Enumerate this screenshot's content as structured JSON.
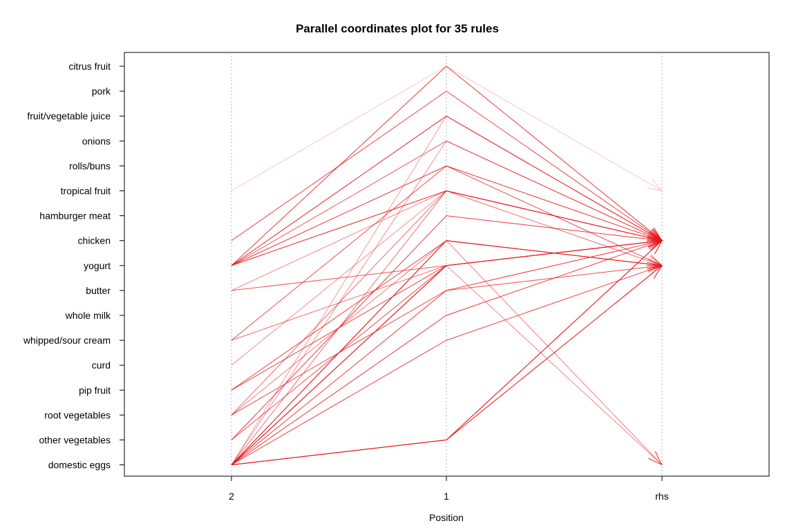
{
  "chart_data": {
    "type": "parallel-coordinates",
    "title": "Parallel coordinates plot for 35 rules",
    "xlabel": "Position",
    "axes": [
      "2",
      "1",
      "rhs"
    ],
    "items": [
      "citrus fruit",
      "pork",
      "fruit/vegetable juice",
      "onions",
      "rolls/buns",
      "tropical fruit",
      "hamburger meat",
      "chicken",
      "yogurt",
      "butter",
      "whole milk",
      "whipped/sour cream",
      "curd",
      "pip fruit",
      "root vegetables",
      "other vegetables",
      "domestic eggs"
    ],
    "line_color": "#e8191e",
    "grid": "vertical-dotted",
    "rules": [
      {
        "pos2": "tropical fruit",
        "pos1": "citrus fruit",
        "rhs": "tropical fruit",
        "shade": 0.12
      },
      {
        "pos2": "yogurt",
        "pos1": "citrus fruit",
        "rhs": "chicken",
        "shade": 0.85
      },
      {
        "pos2": "chicken",
        "pos1": "pork",
        "rhs": "chicken",
        "shade": 0.8
      },
      {
        "pos2": "yogurt",
        "pos1": "fruit/vegetable juice",
        "rhs": "chicken",
        "shade": 0.95
      },
      {
        "pos2": "yogurt",
        "pos1": "onions",
        "rhs": "chicken",
        "shade": 0.7
      },
      {
        "pos2": "yogurt",
        "pos1": "rolls/buns",
        "rhs": "chicken",
        "shade": 0.9
      },
      {
        "pos2": "whipped/sour cream",
        "pos1": "rolls/buns",
        "rhs": "yogurt",
        "shade": 0.75
      },
      {
        "pos2": "yogurt",
        "pos1": "tropical fruit",
        "rhs": "chicken",
        "shade": 0.65
      },
      {
        "pos2": "yogurt",
        "pos1": "tropical fruit",
        "rhs": "chicken",
        "shade": 0.6
      },
      {
        "pos2": "butter",
        "pos1": "tropical fruit",
        "rhs": "chicken",
        "shade": 0.45
      },
      {
        "pos2": "curd",
        "pos1": "tropical fruit",
        "rhs": "chicken",
        "shade": 0.4
      },
      {
        "pos2": "root vegetables",
        "pos1": "tropical fruit",
        "rhs": "yogurt",
        "shade": 0.6
      },
      {
        "pos2": "domestic eggs",
        "pos1": "tropical fruit",
        "rhs": "chicken",
        "shade": 0.55
      },
      {
        "pos2": "other vegetables",
        "pos1": "hamburger meat",
        "rhs": "chicken",
        "shade": 0.85
      },
      {
        "pos2": "domestic eggs",
        "pos1": "chicken",
        "rhs": "yogurt",
        "shade": 0.95
      },
      {
        "pos2": "domestic eggs",
        "pos1": "chicken",
        "rhs": "yogurt",
        "shade": 0.9
      },
      {
        "pos2": "pip fruit",
        "pos1": "chicken",
        "rhs": "yogurt",
        "shade": 0.8
      },
      {
        "pos2": "root vegetables",
        "pos1": "chicken",
        "rhs": "domestic eggs",
        "shade": 0.5
      },
      {
        "pos2": "butter",
        "pos1": "yogurt",
        "rhs": "chicken",
        "shade": 0.7
      },
      {
        "pos2": "domestic eggs",
        "pos1": "yogurt",
        "rhs": "chicken",
        "shade": 0.95
      },
      {
        "pos2": "domestic eggs",
        "pos1": "yogurt",
        "rhs": "chicken",
        "shade": 0.9
      },
      {
        "pos2": "pip fruit",
        "pos1": "yogurt",
        "rhs": "chicken",
        "shade": 0.8
      },
      {
        "pos2": "whipped/sour cream",
        "pos1": "yogurt",
        "rhs": "chicken",
        "shade": 0.6
      },
      {
        "pos2": "domestic eggs",
        "pos1": "yogurt",
        "rhs": "domestic eggs",
        "shade": 0.45
      },
      {
        "pos2": "domestic eggs",
        "pos1": "butter",
        "rhs": "chicken",
        "shade": 0.85
      },
      {
        "pos2": "root vegetables",
        "pos1": "butter",
        "rhs": "yogurt",
        "shade": 0.75
      },
      {
        "pos2": "domestic eggs",
        "pos1": "whole milk",
        "rhs": "chicken",
        "shade": 0.85
      },
      {
        "pos2": "domestic eggs",
        "pos1": "whipped/sour cream",
        "rhs": "yogurt",
        "shade": 0.8
      },
      {
        "pos2": "domestic eggs",
        "pos1": "other vegetables",
        "rhs": "chicken",
        "shade": 0.95
      },
      {
        "pos2": "domestic eggs",
        "pos1": "other vegetables",
        "rhs": "chicken",
        "shade": 0.9
      },
      {
        "pos2": "domestic eggs",
        "pos1": "other vegetables",
        "rhs": "yogurt",
        "shade": 0.85
      },
      {
        "pos2": "domestic eggs",
        "pos1": "other vegetables",
        "rhs": "yogurt",
        "shade": 0.65
      },
      {
        "pos2": "other vegetables",
        "pos1": "yogurt",
        "rhs": "chicken",
        "shade": 0.7
      },
      {
        "pos2": "domestic eggs",
        "pos1": "fruit/vegetable juice",
        "rhs": "chicken",
        "shade": 0.35
      },
      {
        "pos2": "domestic eggs",
        "pos1": "onions",
        "rhs": "chicken",
        "shade": 0.4
      }
    ]
  }
}
